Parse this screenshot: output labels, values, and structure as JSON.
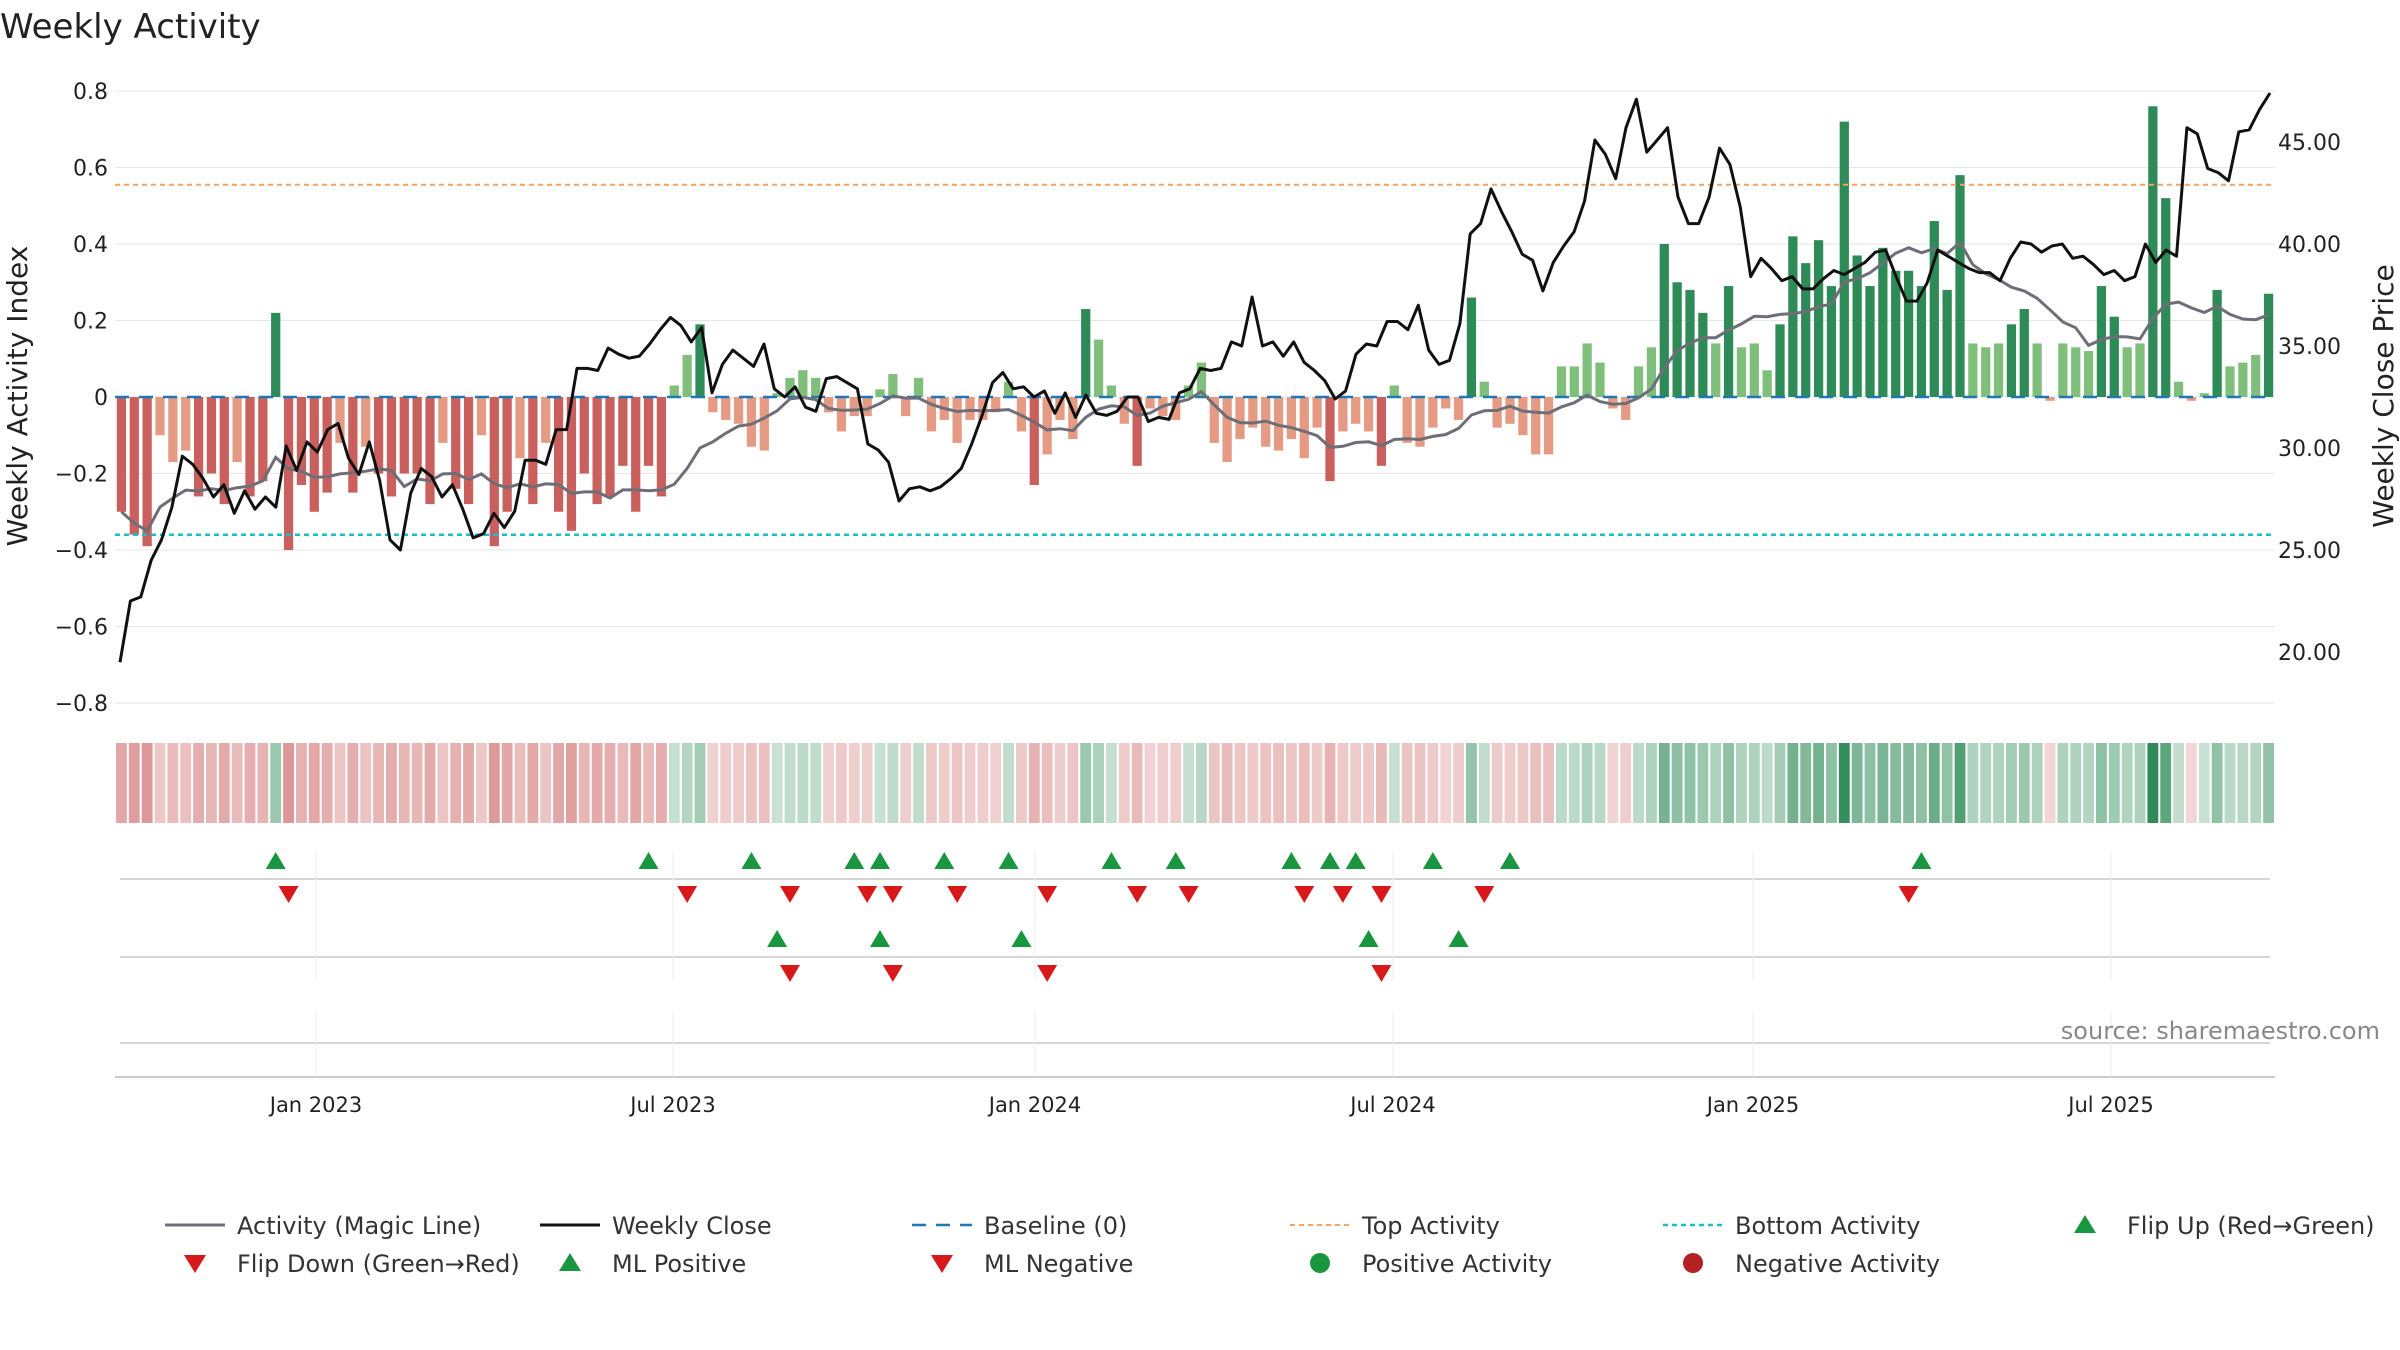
{
  "colors": {
    "strong_green": "#2e8b57",
    "light_green": "#7fbf7b",
    "strong_red": "#c9605e",
    "light_red": "#e59a83",
    "magic_line": "#6e6e78",
    "close_line": "#111111",
    "baseline": "#1f77b4",
    "top_line": "#f4a460",
    "bottom_line": "#17becf",
    "marker_green": "#1a9641",
    "marker_red": "#d7191c"
  },
  "chart_data": {
    "type": "bar",
    "title": "Weekly Activity",
    "ylabel_left": "Weekly Activity Index",
    "ylabel_right": "Weekly Close Price",
    "ylim_left": [
      -0.8,
      0.8
    ],
    "ylim_right": [
      17.5,
      47.5
    ],
    "yticks_left": [
      "0.8",
      "0.6",
      "0.4",
      "0.2",
      "0",
      "−0.2",
      "−0.4",
      "−0.6",
      "−0.8"
    ],
    "yticks_right": [
      "45.00",
      "40.00",
      "35.00",
      "30.00",
      "25.00",
      "20.00"
    ],
    "x_ticks": [
      "Jan 2023",
      "Jul 2023",
      "Jan 2024",
      "Jul 2024",
      "Jan 2025",
      "Jul 2025"
    ],
    "top_activity": 0.555,
    "bottom_activity": -0.36,
    "source": "source: sharemaestro.com",
    "legend": [
      "Activity (Magic Line)",
      "Weekly Close",
      "Baseline (0)",
      "Top Activity",
      "Bottom Activity",
      "Flip Up (Red→Green)",
      "Flip Down (Green→Red)",
      "ML Positive",
      "ML Negative",
      "Positive Activity",
      "Negative Activity"
    ],
    "activity": [
      -0.3,
      -0.36,
      -0.39,
      -0.1,
      -0.17,
      -0.14,
      -0.26,
      -0.2,
      -0.28,
      -0.17,
      -0.26,
      -0.22,
      0.22,
      -0.4,
      -0.23,
      -0.3,
      -0.25,
      -0.12,
      -0.25,
      -0.13,
      -0.2,
      -0.26,
      -0.2,
      -0.2,
      -0.28,
      -0.12,
      -0.24,
      -0.28,
      -0.1,
      -0.39,
      -0.3,
      -0.16,
      -0.28,
      -0.12,
      -0.3,
      -0.35,
      -0.2,
      -0.28,
      -0.26,
      -0.18,
      -0.3,
      -0.18,
      -0.26,
      0.03,
      0.11,
      0.19,
      -0.04,
      -0.06,
      -0.07,
      -0.13,
      -0.14,
      0.01,
      0.05,
      0.07,
      0.05,
      -0.04,
      -0.09,
      -0.05,
      -0.05,
      0.02,
      0.06,
      -0.05,
      0.05,
      -0.09,
      -0.06,
      -0.12,
      -0.06,
      -0.06,
      -0.04,
      0.04,
      -0.09,
      -0.23,
      -0.15,
      -0.06,
      -0.11,
      0.23,
      0.15,
      0.03,
      -0.07,
      -0.18,
      -0.03,
      -0.05,
      -0.06,
      0.03,
      0.09,
      -0.12,
      -0.17,
      -0.11,
      -0.08,
      -0.13,
      -0.14,
      -0.11,
      -0.16,
      -0.08,
      -0.22,
      -0.09,
      -0.07,
      -0.09,
      -0.18,
      0.03,
      -0.12,
      -0.13,
      -0.08,
      -0.03,
      -0.06,
      0.26,
      0.04,
      -0.08,
      -0.07,
      -0.1,
      -0.15,
      -0.15,
      0.08,
      0.08,
      0.14,
      0.09,
      -0.03,
      -0.06,
      0.08,
      0.13,
      0.4,
      0.3,
      0.28,
      0.22,
      0.14,
      0.29,
      0.13,
      0.14,
      0.07,
      0.19,
      0.42,
      0.35,
      0.41,
      0.29,
      0.72,
      0.37,
      0.29,
      0.39,
      0.33,
      0.33,
      0.29,
      0.46,
      0.28,
      0.58,
      0.14,
      0.13,
      0.14,
      0.19,
      0.23,
      0.14,
      -0.01,
      0.14,
      0.13,
      0.12,
      0.29,
      0.21,
      0.13,
      0.14,
      0.76,
      0.52,
      0.04,
      -0.01,
      0.01,
      0.28,
      0.08,
      0.09,
      0.11,
      0.27
    ],
    "close": [
      19.5,
      22.5,
      22.7,
      24.5,
      25.5,
      27.1,
      29.6,
      29.2,
      28.5,
      27.6,
      28.2,
      26.8,
      27.9,
      27.0,
      27.6,
      27.1,
      30.1,
      28.9,
      30.3,
      29.8,
      30.9,
      31.2,
      29.5,
      28.7,
      30.3,
      28.4,
      25.5,
      25.0,
      27.8,
      29.0,
      28.6,
      27.6,
      28.2,
      27.0,
      25.6,
      25.8,
      26.8,
      26.1,
      26.9,
      29.4,
      29.4,
      29.2,
      30.9,
      30.9,
      33.9,
      33.9,
      33.8,
      34.9,
      34.6,
      34.4,
      34.5,
      35.1,
      35.8,
      36.4,
      36.0,
      35.2,
      35.9,
      32.7,
      34.1,
      34.8,
      34.4,
      34.0,
      35.1,
      32.9,
      32.5,
      33.0,
      32.0,
      31.8,
      33.4,
      33.5,
      33.2,
      32.9,
      30.2,
      29.9,
      29.3,
      27.4,
      28.0,
      28.1,
      27.9,
      28.1,
      28.5,
      29.0,
      30.2,
      31.6,
      33.2,
      33.7,
      32.9,
      33.0,
      32.5,
      32.8,
      31.7,
      32.7,
      31.5,
      32.6,
      31.7,
      31.6,
      31.8,
      32.5,
      32.5,
      31.3,
      31.5,
      31.4,
      32.7,
      32.9,
      33.9,
      33.8,
      33.9,
      35.2,
      35.0,
      37.4,
      35.0,
      35.2,
      34.5,
      35.2,
      34.2,
      33.8,
      33.3,
      32.4,
      32.8,
      34.6,
      35.1,
      35.0,
      36.2,
      36.2,
      35.8,
      37.0,
      34.8,
      34.1,
      34.3,
      36.1,
      40.5,
      41.0,
      42.7,
      41.6,
      40.6,
      39.5,
      39.2,
      37.7,
      39.1,
      39.9,
      40.6,
      42.1,
      45.1,
      44.4,
      43.2,
      45.7,
      47.1,
      44.5,
      45.1,
      45.7,
      42.3,
      41.0,
      41.0,
      42.3,
      44.7,
      43.9,
      41.8,
      38.4,
      39.3,
      38.8,
      38.2,
      38.4,
      37.8,
      37.8,
      38.3,
      38.7,
      38.5,
      38.8,
      39.1,
      39.6,
      39.7,
      38.4,
      37.2,
      37.2,
      38.1,
      39.7,
      39.4,
      39.1,
      38.8,
      38.6,
      38.6,
      38.2,
      39.3,
      40.1,
      40.0,
      39.6,
      39.9,
      40.0,
      39.3,
      39.4,
      39.0,
      38.5,
      38.7,
      38.2,
      38.4,
      40.0,
      39.1,
      39.7,
      39.4,
      45.7,
      45.4,
      43.7,
      43.5,
      43.1,
      45.5,
      45.6,
      46.6,
      47.4
    ],
    "flip_up_weeks": [
      12,
      41,
      49,
      57,
      59,
      64,
      69,
      77,
      82,
      91,
      94,
      96,
      102,
      108,
      140
    ],
    "flip_down_weeks": [
      13,
      44,
      52,
      58,
      60,
      65,
      72,
      79,
      83,
      92,
      95,
      98,
      106,
      139
    ],
    "ml_positive_weeks": [
      51,
      59,
      70,
      97,
      104
    ],
    "ml_negative_weeks": [
      52,
      60,
      72,
      98
    ]
  }
}
